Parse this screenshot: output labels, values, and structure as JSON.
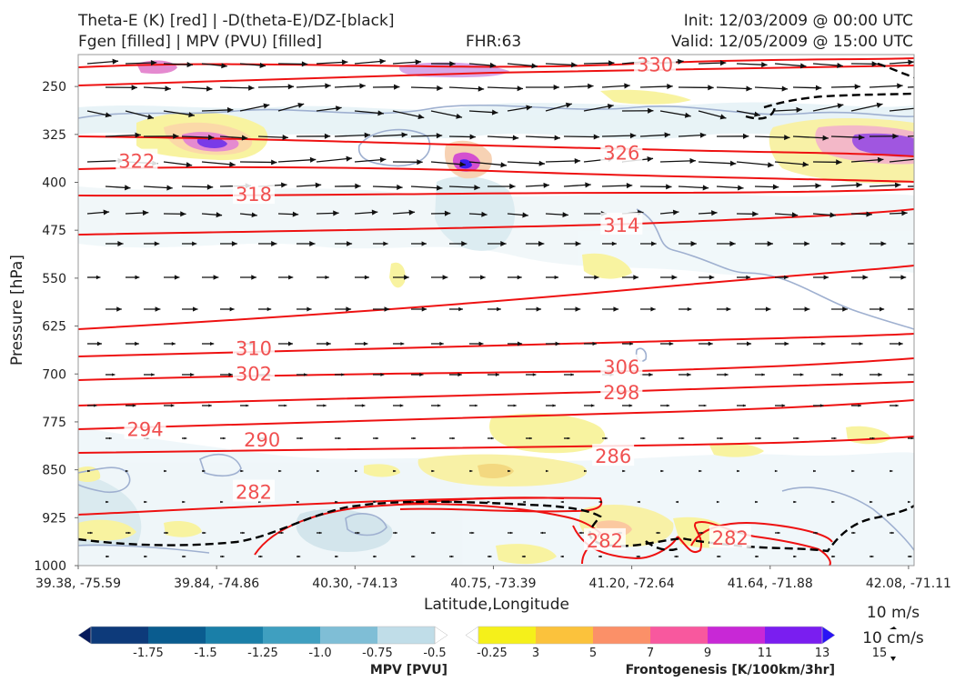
{
  "header": {
    "title_line1": "Theta-E (K) [red] | -D(theta-E)/DZ-[black]",
    "title_line2": "Fgen [filled] | MPV (PVU) [filled]",
    "fhr": "FHR:63",
    "init": "Init: 12/03/2009 @ 00:00 UTC",
    "valid": "Valid: 12/05/2009 @ 15:00 UTC"
  },
  "colors": {
    "theta_e": "#ee1111",
    "label": "#f05050",
    "mpv_contour": "#9fb0d0",
    "dz_contour": "#000000",
    "wind": "#111111"
  },
  "chart_data": {
    "type": "cross-section",
    "xlabel": "Latitude,Longitude",
    "ylabel": "Pressure [hPa]",
    "x_ticks": [
      "39.38, -75.59",
      "39.84, -74.86",
      "40.30, -74.13",
      "40.75, -73.39",
      "41.20, -72.64",
      "41.64, -71.88",
      "42.08, -71.11"
    ],
    "y_ticks": [
      250,
      325,
      400,
      475,
      550,
      625,
      700,
      775,
      850,
      925,
      1000
    ],
    "ylim": [
      1000,
      200
    ],
    "theta_e_labels": [
      {
        "value": "330",
        "x": 0.69,
        "p": 215
      },
      {
        "value": "326",
        "x": 0.65,
        "p": 353
      },
      {
        "value": "322",
        "x": 0.07,
        "p": 366
      },
      {
        "value": "318",
        "x": 0.21,
        "p": 418
      },
      {
        "value": "314",
        "x": 0.65,
        "p": 466
      },
      {
        "value": "310",
        "x": 0.21,
        "p": 659
      },
      {
        "value": "306",
        "x": 0.65,
        "p": 688
      },
      {
        "value": "302",
        "x": 0.21,
        "p": 699
      },
      {
        "value": "298",
        "x": 0.65,
        "p": 728
      },
      {
        "value": "294",
        "x": 0.08,
        "p": 786
      },
      {
        "value": "290",
        "x": 0.22,
        "p": 802
      },
      {
        "value": "286",
        "x": 0.64,
        "p": 828
      },
      {
        "value": "282",
        "x": 0.21,
        "p": 884
      },
      {
        "value": "282",
        "x": 0.63,
        "p": 960
      },
      {
        "value": "282",
        "x": 0.78,
        "p": 956
      }
    ],
    "mpv_colorbar": {
      "title": "MPV [PVU]",
      "ticks": [
        "-1.75",
        "-1.5",
        "-1.25",
        "-1.0",
        "-0.75",
        "-0.5",
        "-0.25"
      ],
      "colors": [
        "#061a5c",
        "#0d3a7a",
        "#0a5c8f",
        "#1a7fa8",
        "#3f9fc0",
        "#7fbed6",
        "#c0dde8",
        "#ffffff"
      ]
    },
    "fgen_colorbar": {
      "title": "Frontogenesis [K/100km/3hr]",
      "ticks": [
        "3",
        "5",
        "7",
        "9",
        "11",
        "13",
        "15"
      ],
      "colors": [
        "#ffffff",
        "#f5f01a",
        "#fbc23c",
        "#fb9068",
        "#f8589e",
        "#c828d6",
        "#7a1ef0",
        "#2a14f5"
      ]
    },
    "reference_vectors": [
      "10 m/s",
      "10 cm/s"
    ]
  }
}
